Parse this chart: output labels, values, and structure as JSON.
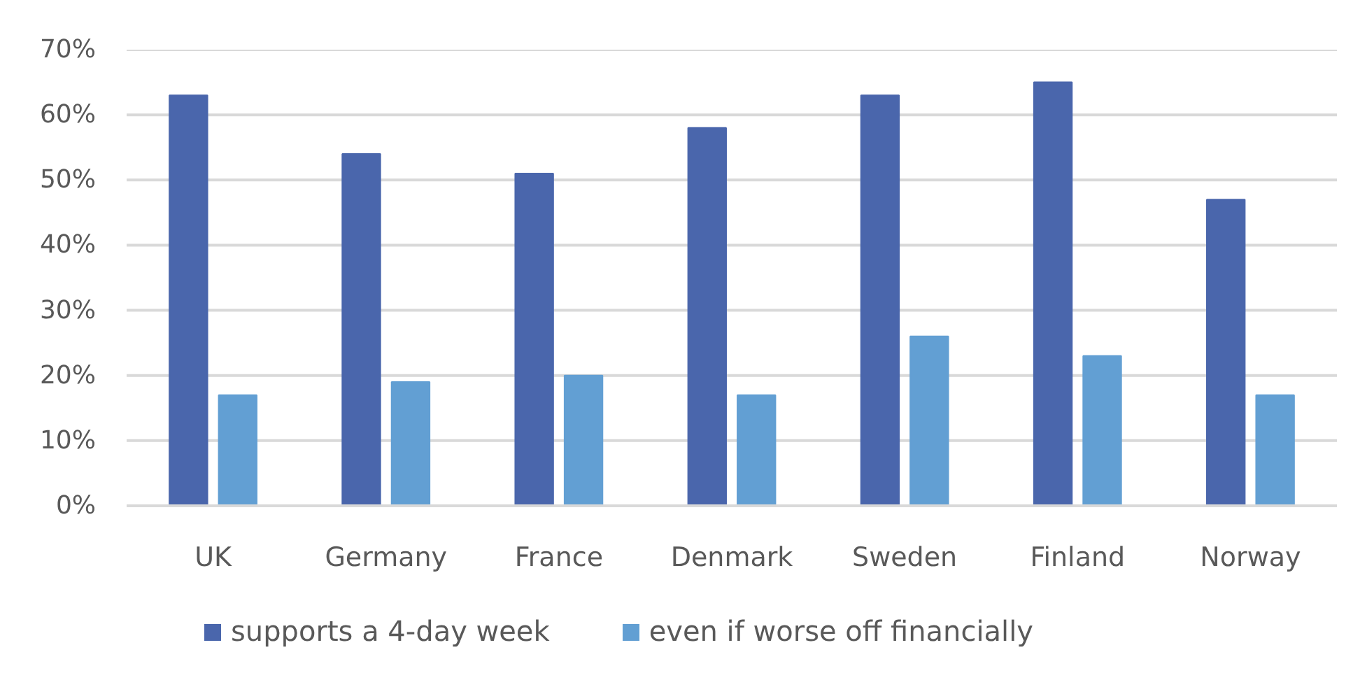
{
  "chart_data": {
    "type": "bar",
    "categories": [
      "UK",
      "Germany",
      "France",
      "Denmark",
      "Sweden",
      "Finland",
      "Norway"
    ],
    "series": [
      {
        "name": "supports a 4-day week",
        "color": "#4a66ac",
        "values": [
          63,
          54,
          51,
          58,
          63,
          65,
          47
        ]
      },
      {
        "name": "even if worse off financially",
        "color": "#629fd3",
        "values": [
          17,
          19,
          20,
          17,
          26,
          23,
          17
        ]
      }
    ],
    "ylim": [
      0,
      70
    ],
    "yticks": [
      {
        "value": 0,
        "label": "0%"
      },
      {
        "value": 10,
        "label": "10%"
      },
      {
        "value": 20,
        "label": "20%"
      },
      {
        "value": 30,
        "label": "30%"
      },
      {
        "value": 40,
        "label": "40%"
      },
      {
        "value": 50,
        "label": "50%"
      },
      {
        "value": 60,
        "label": "60%"
      },
      {
        "value": 70,
        "label": "70%"
      }
    ],
    "grid": "y",
    "legend": "bottom"
  }
}
